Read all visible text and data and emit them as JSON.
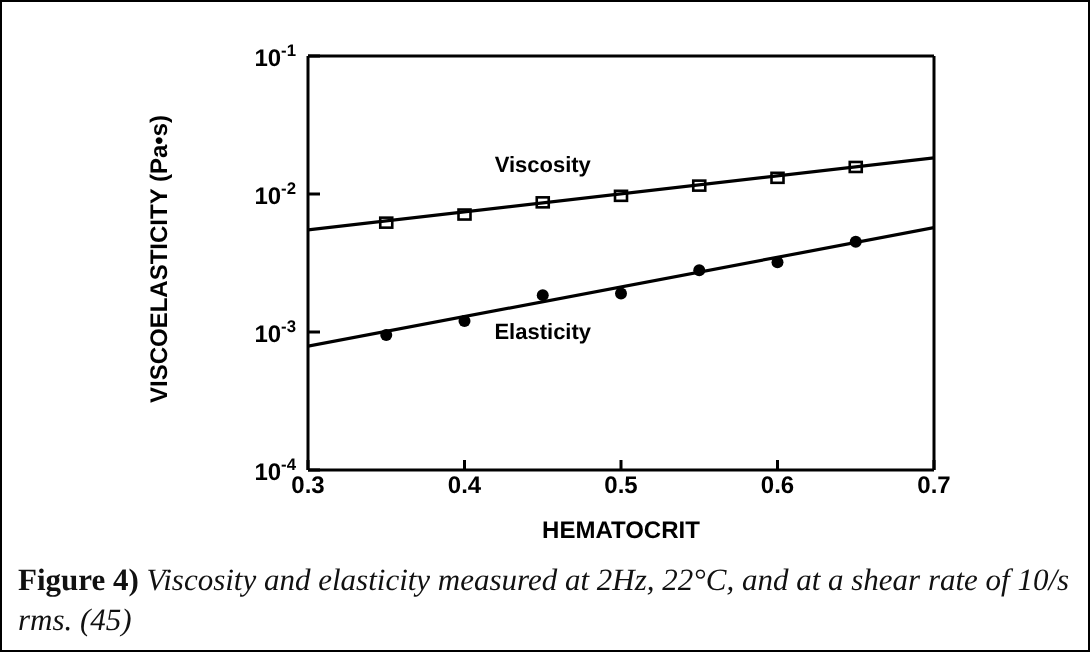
{
  "chart_data": {
    "type": "scatter",
    "xlabel": "HEMATOCRIT",
    "ylabel": "VISCOELASTICITY  (Pa•s)",
    "annotations": [
      "Figure 4)",
      "Viscosity and elasticity measured at 2Hz, 22°C, and at a shear rate of 10/s rms. (45)"
    ],
    "log": "y",
    "grid": false,
    "legend": false,
    "xlim": [
      0.3,
      0.7
    ],
    "xticks": [
      0.3,
      0.4,
      0.5,
      0.6,
      0.7
    ],
    "ylim": [
      0.0001,
      0.1
    ],
    "yticks": [
      {
        "value": 0.0001,
        "label": "10$^{-4}$"
      },
      {
        "value": 0.001,
        "label": "10$^{-3}$"
      },
      {
        "value": 0.01,
        "label": "10$^{-2}$"
      },
      {
        "value": 0.1,
        "label": "10$^{-1}$"
      }
    ],
    "series": [
      {
        "name": "Viscosity",
        "marker": "square",
        "color": "#000000",
        "x": [
          0.35,
          0.4,
          0.45,
          0.5,
          0.55,
          0.6,
          0.65
        ],
        "values": [
          0.0062,
          0.0071,
          0.0087,
          0.0097,
          0.0115,
          0.0131,
          0.0157
        ]
      },
      {
        "name": "Elasticity",
        "marker": "circle",
        "color": "#000000",
        "x": [
          0.35,
          0.4,
          0.45,
          0.5,
          0.55,
          0.6,
          0.65
        ],
        "values": [
          0.00095,
          0.0012,
          0.00185,
          0.0019,
          0.0028,
          0.0032,
          0.0045
        ]
      },
      {
        "type": "line",
        "marker": "none",
        "line_style": "solid",
        "color": "#000000",
        "x": [
          0.3,
          0.7
        ],
        "values": [
          0.0055,
          0.0183
        ]
      },
      {
        "type": "line",
        "marker": "none",
        "line_style": "solid",
        "color": "#000000",
        "x": [
          0.3,
          0.7
        ],
        "values": [
          0.00079,
          0.0057
        ]
      }
    ]
  }
}
